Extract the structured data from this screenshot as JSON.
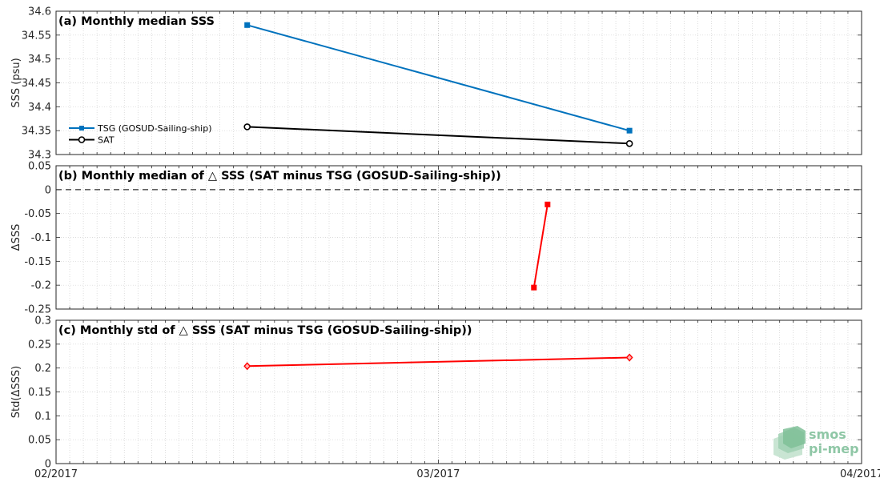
{
  "chart_data": [
    {
      "type": "line",
      "title": "(a) Monthly median SSS",
      "xlabel": "",
      "ylabel": "SSS (psu)",
      "xlim": [
        "2017-02-01",
        "2017-04-01"
      ],
      "ylim": [
        34.3,
        34.6
      ],
      "yticks": [
        34.3,
        34.35,
        34.4,
        34.45,
        34.5,
        34.55,
        34.6
      ],
      "ytick_labels": [
        "34.3",
        "34.35",
        "34.4",
        "34.45",
        "34.5",
        "34.55",
        "34.6"
      ],
      "grid": true,
      "legend_position": "left",
      "series": [
        {
          "name": "TSG (GOSUD-Sailing-ship)",
          "color": "#0072bd",
          "marker": "square",
          "x": [
            "2017-02-15",
            "2017-03-15"
          ],
          "y": [
            34.571,
            34.35
          ]
        },
        {
          "name": "SAT",
          "color": "#000000",
          "marker": "circle",
          "x": [
            "2017-02-15",
            "2017-03-15"
          ],
          "y": [
            34.358,
            34.323
          ]
        }
      ]
    },
    {
      "type": "line",
      "title": "(b) Monthly median of △ SSS (SAT minus TSG (GOSUD-Sailing-ship))",
      "xlabel": "",
      "ylabel": "ΔSSS",
      "xlim": [
        "2017-02-01",
        "2017-04-01"
      ],
      "ylim": [
        -0.25,
        0.05
      ],
      "yticks": [
        -0.25,
        -0.2,
        -0.15,
        -0.1,
        -0.05,
        0,
        0.05
      ],
      "ytick_labels": [
        "-0.25",
        "-0.2",
        "-0.15",
        "-0.1",
        "-0.05",
        "0",
        "0.05"
      ],
      "grid": true,
      "zero_line": "dashed",
      "series": [
        {
          "name": "",
          "color": "#ff0000",
          "marker": "square",
          "x": [
            "2017-03-08",
            "2017-03-09"
          ],
          "y": [
            -0.205,
            -0.031
          ]
        }
      ]
    },
    {
      "type": "line",
      "title": "(c) Monthly std of △ SSS (SAT minus TSG (GOSUD-Sailing-ship))",
      "xlabel": "",
      "ylabel": "Std(ΔSSS)",
      "xlim": [
        "2017-02-01",
        "2017-04-01"
      ],
      "ylim": [
        0,
        0.3
      ],
      "yticks": [
        0,
        0.05,
        0.1,
        0.15,
        0.2,
        0.25,
        0.3
      ],
      "ytick_labels": [
        "0",
        "0.05",
        "0.1",
        "0.15",
        "0.2",
        "0.25",
        "0.3"
      ],
      "xtick_values": [
        "2017-02-01",
        "2017-03-01",
        "2017-04-01"
      ],
      "xtick_labels": [
        "02/2017",
        "03/2017",
        "04/2017"
      ],
      "grid": true,
      "series": [
        {
          "name": "",
          "color": "#ff0000",
          "marker": "diamond",
          "x": [
            "2017-02-15",
            "2017-03-15"
          ],
          "y": [
            0.204,
            0.222
          ]
        }
      ]
    }
  ],
  "logo": {
    "line1": "smos",
    "line2": "pi-mep",
    "color": "#8fc7a6"
  }
}
